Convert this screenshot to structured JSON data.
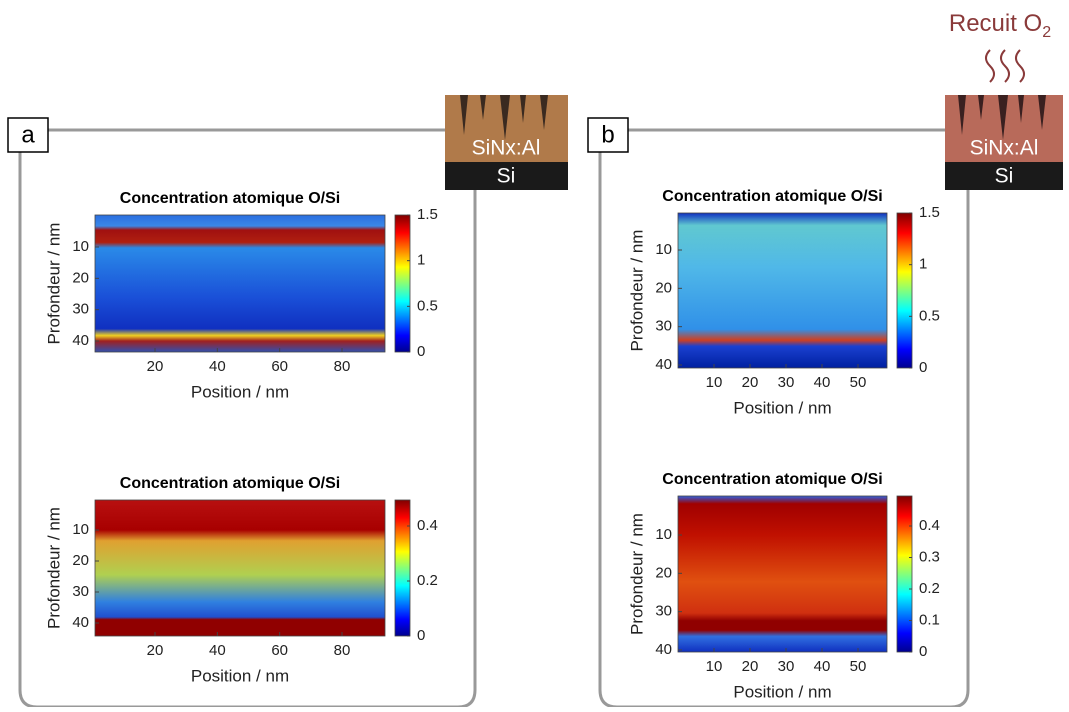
{
  "panels": [
    {
      "label": "a",
      "stack": {
        "layer": "SiNx:Al",
        "substrate": "Si"
      },
      "plots": [
        {
          "title": "Concentration atomique O/Si",
          "ylabel": "Profondeur  /  nm",
          "xlabel": "Position  /  nm",
          "yticks": [
            10,
            20,
            30,
            40
          ],
          "xticks": [
            20,
            40,
            60,
            80
          ],
          "cticks": [
            0,
            0.5,
            1,
            1.5
          ]
        },
        {
          "title": "Concentration atomique O/Si",
          "ylabel": "Profondeur  /  nm",
          "xlabel": "Position  /  nm",
          "yticks": [
            10,
            20,
            30,
            40
          ],
          "xticks": [
            20,
            40,
            60,
            80
          ],
          "cticks": [
            0,
            0.2,
            0.4
          ]
        }
      ]
    },
    {
      "label": "b",
      "annotation": "Recuit O",
      "annotation_sub": "2",
      "stack": {
        "layer": "SiNx:Al",
        "substrate": "Si"
      },
      "plots": [
        {
          "title": "Concentration atomique O/Si",
          "ylabel": "Profondeur  /  nm",
          "xlabel": "Position  /  nm",
          "yticks": [
            10,
            20,
            30,
            40
          ],
          "xticks": [
            10,
            20,
            30,
            40,
            50
          ],
          "cticks": [
            0,
            0.5,
            1,
            1.5
          ]
        },
        {
          "title": "Concentration atomique O/Si",
          "ylabel": "Profondeur  /  nm",
          "xlabel": "Position  /  nm",
          "yticks": [
            10,
            20,
            30,
            40
          ],
          "xticks": [
            10,
            20,
            30,
            40,
            50
          ],
          "cticks": [
            0,
            0.1,
            0.2,
            0.3,
            0.4
          ]
        }
      ]
    }
  ]
}
